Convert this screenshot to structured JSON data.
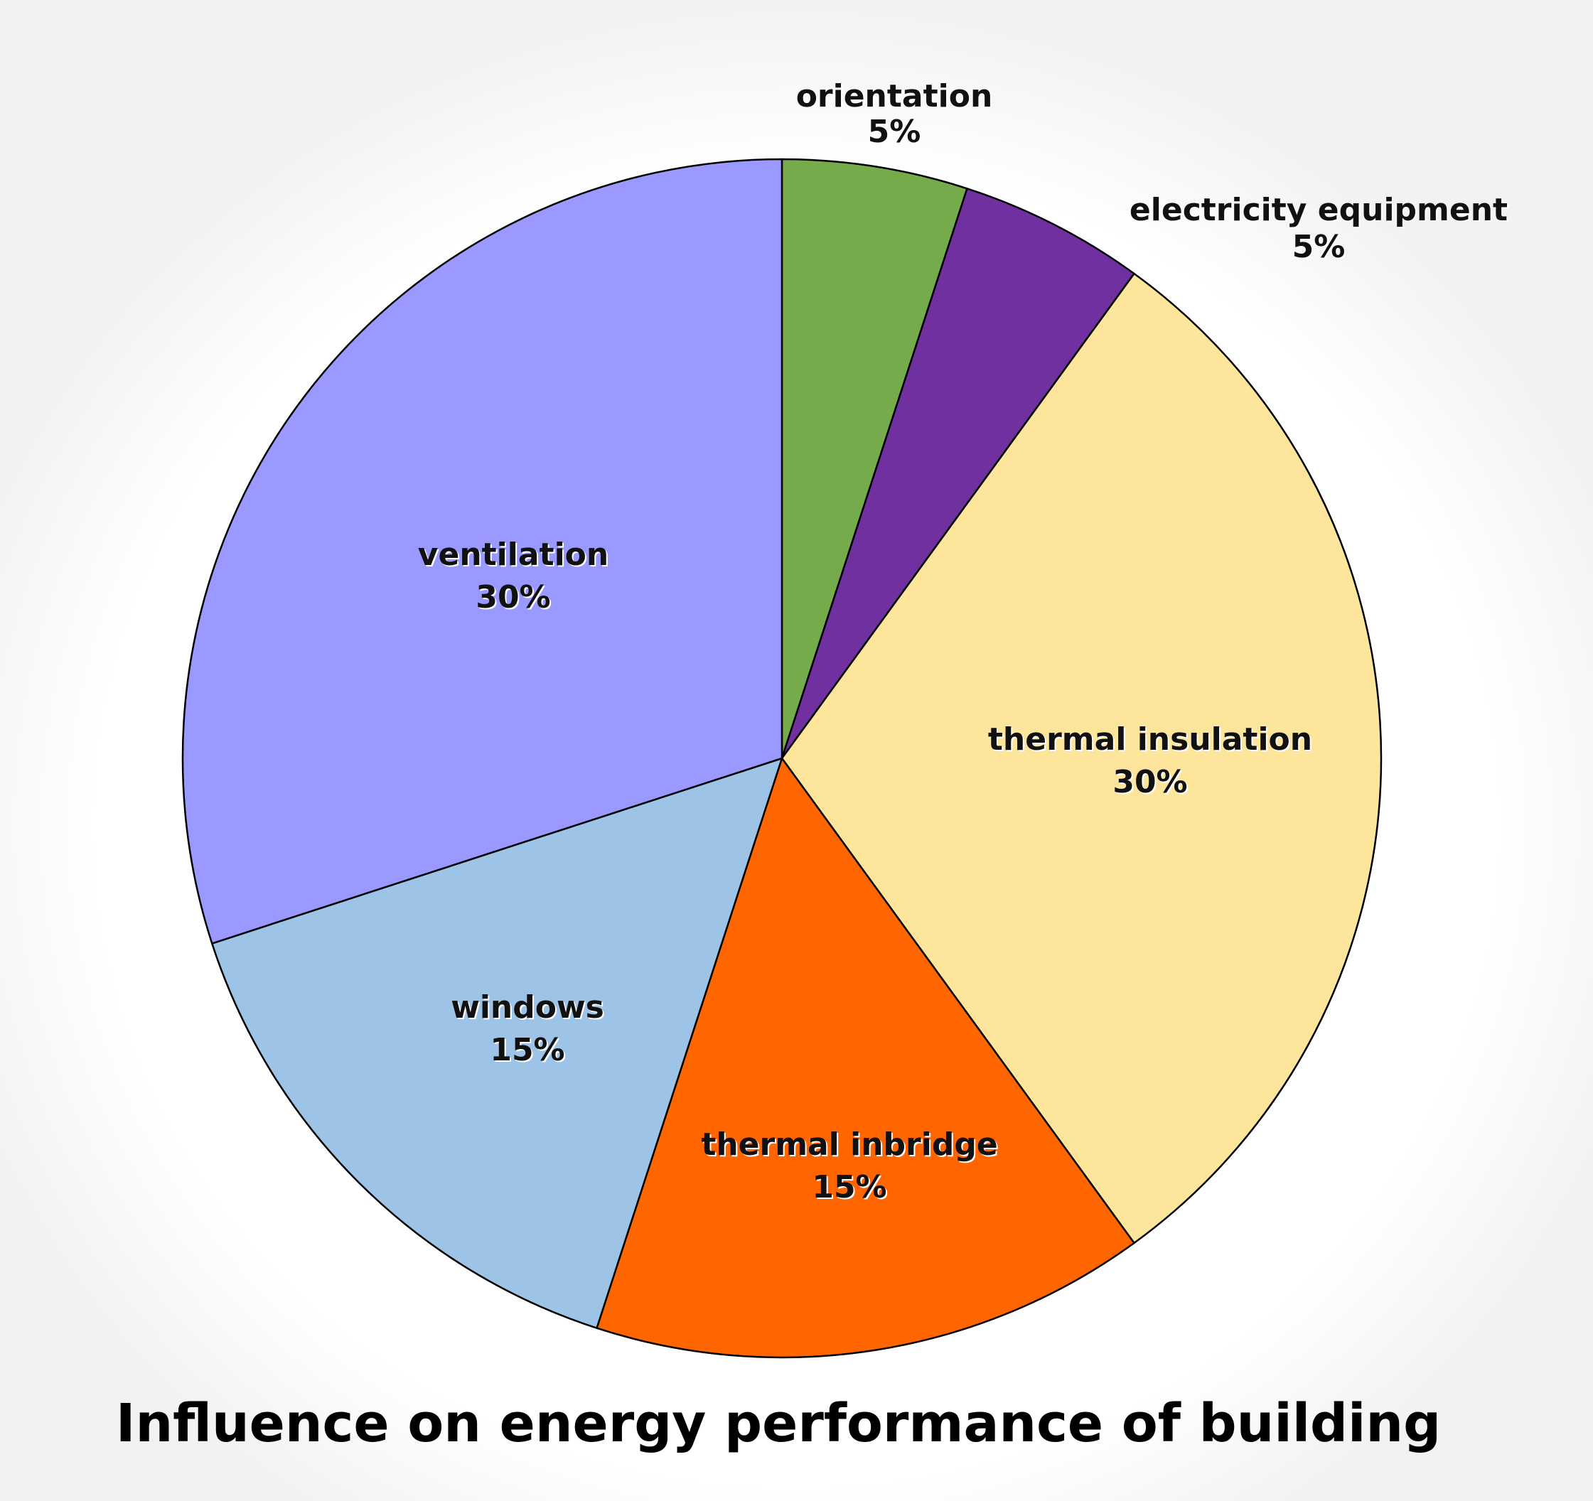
{
  "chart_data": {
    "type": "pie",
    "title": "Influence on energy performance of building",
    "start_angle_deg": 0,
    "direction": "clockwise",
    "slices": [
      {
        "label": "orientation",
        "value": 5,
        "value_label": "5%",
        "color": "#75AB4A"
      },
      {
        "label": "electricity equipment",
        "value": 5,
        "value_label": "5%",
        "color": "#7030A0"
      },
      {
        "label": "thermal insulation",
        "value": 30,
        "value_label": "30%",
        "color": "#FEE59C"
      },
      {
        "label": "thermal inbridge",
        "value": 15,
        "value_label": "15%",
        "color": "#FF6600"
      },
      {
        "label": "windows",
        "value": 15,
        "value_label": "15%",
        "color": "#9DC3E6"
      },
      {
        "label": "ventilation",
        "value": 30,
        "value_label": "30%",
        "color": "#9999FF"
      }
    ]
  }
}
